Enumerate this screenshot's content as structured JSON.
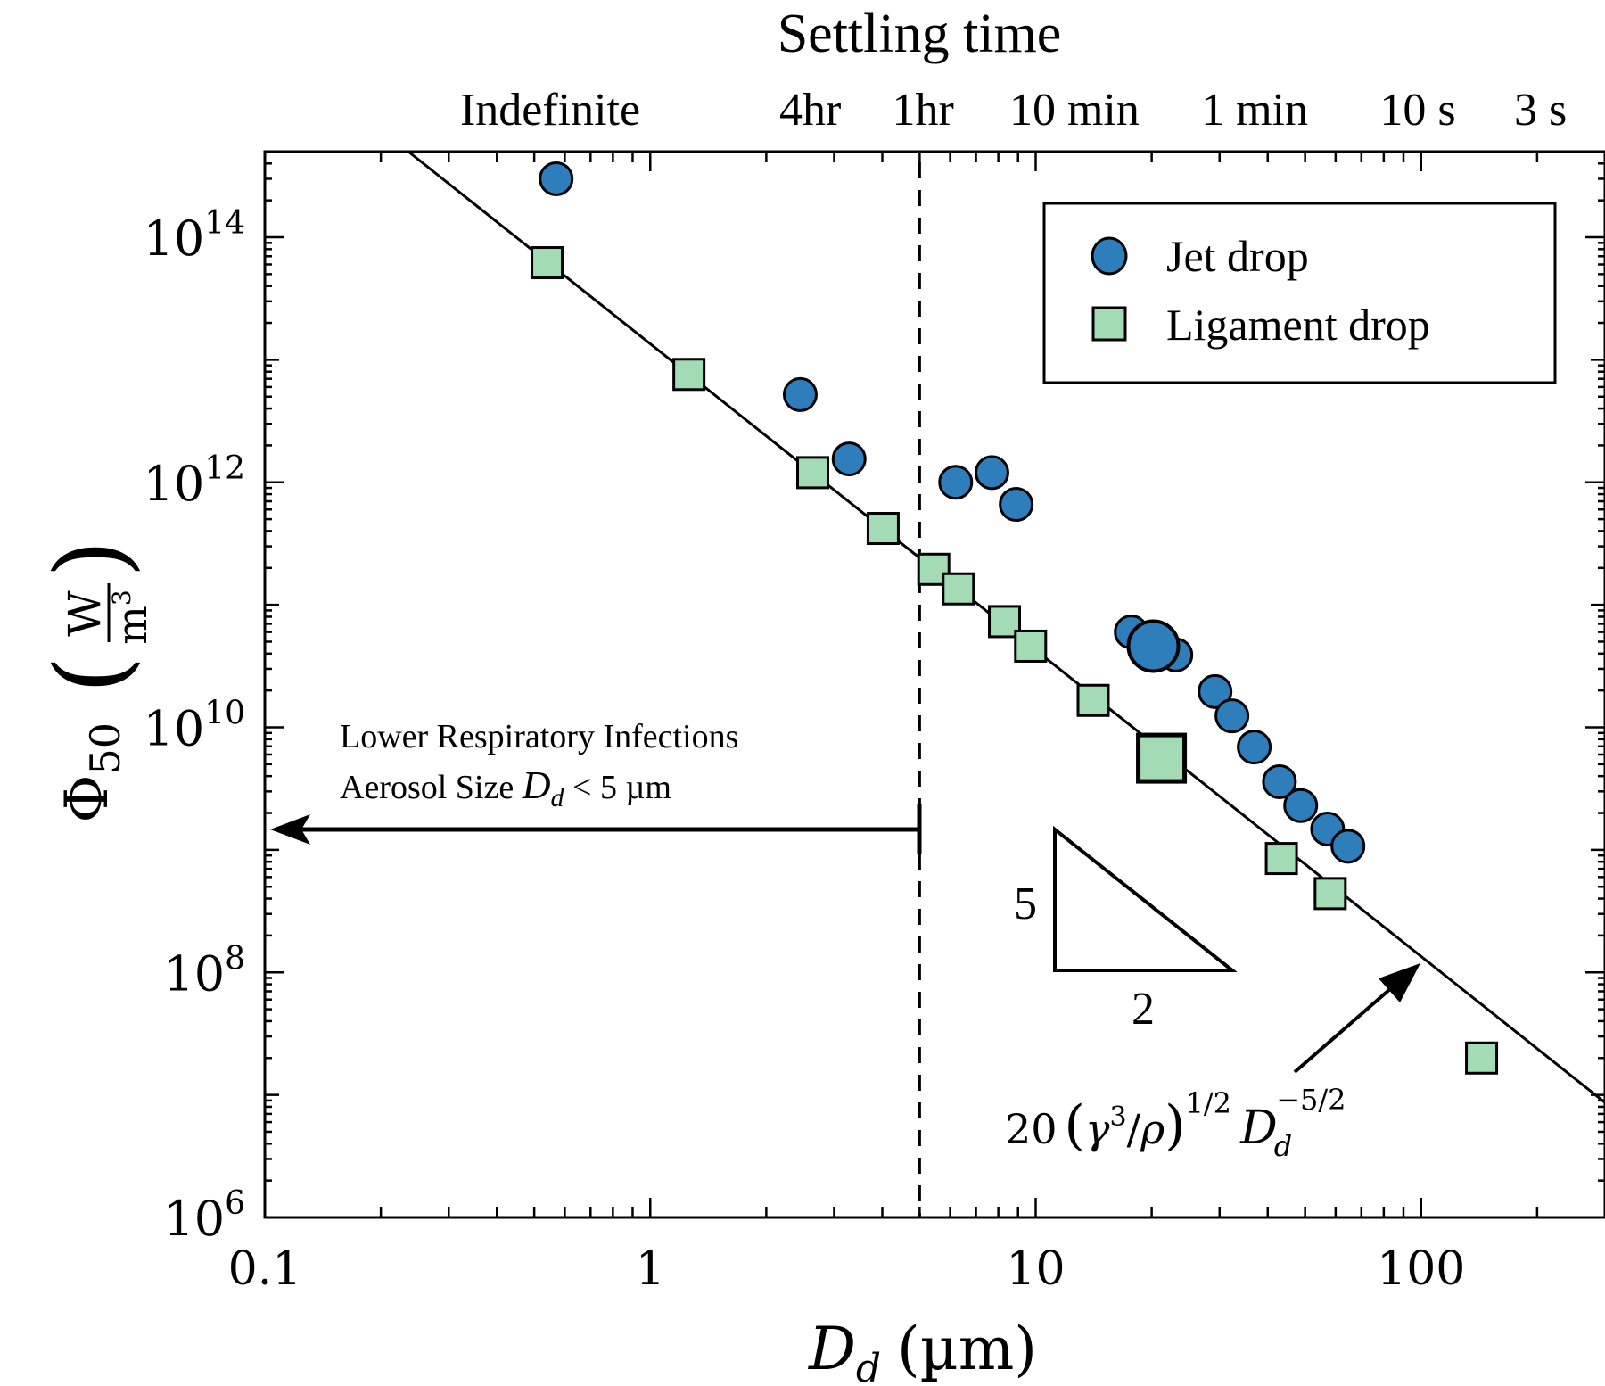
{
  "chart_data": {
    "type": "scatter",
    "xscale": "log",
    "yscale": "log",
    "xlim": [
      0.1,
      300
    ],
    "ylim": [
      1000000.0,
      500000000000000.0
    ],
    "title": "Settling time",
    "xlabel": "D_d (µm)",
    "xlabel_parts": {
      "main": "D",
      "sub": "d",
      "unit": "(µm)"
    },
    "ylabel_parts": {
      "main": "Φ",
      "sub": "50",
      "num": "W",
      "den": "m",
      "den_sup": "3"
    },
    "x_ticks": [
      {
        "value": 0.1,
        "label": "0.1"
      },
      {
        "value": 1,
        "label": "1"
      },
      {
        "value": 10,
        "label": "10"
      },
      {
        "value": 100,
        "label": "100"
      }
    ],
    "y_ticks": [
      {
        "value": 1000000.0,
        "base": "10",
        "exp": "6"
      },
      {
        "value": 100000000.0,
        "base": "10",
        "exp": "8"
      },
      {
        "value": 10000000000.0,
        "base": "10",
        "exp": "10"
      },
      {
        "value": 1000000000000.0,
        "base": "10",
        "exp": "12"
      },
      {
        "value": 100000000000000.0,
        "base": "10",
        "exp": "14"
      }
    ],
    "top_axis_labels": [
      {
        "x": 0.55,
        "label": "Indefinite"
      },
      {
        "x": 2.6,
        "label": "4hr"
      },
      {
        "x": 5.1,
        "label": "1hr"
      },
      {
        "x": 12.6,
        "label": "10 min"
      },
      {
        "x": 37,
        "label": "1 min"
      },
      {
        "x": 98,
        "label": "10 s"
      },
      {
        "x": 204,
        "label": "3 s"
      }
    ],
    "grid": false,
    "legend": {
      "placement": "top-right",
      "entries": [
        {
          "label": "Jet drop",
          "marker": "circle",
          "color": "#2e7ebc"
        },
        {
          "label": "Ligament drop",
          "marker": "square",
          "color": "#a3dbb5"
        }
      ]
    },
    "series": [
      {
        "name": "Jet drop",
        "marker": "circle",
        "color": "#2e7ebc",
        "points": [
          {
            "x": 0.57,
            "y": 300000000000000.0
          },
          {
            "x": 2.45,
            "y": 5200000000000.0
          },
          {
            "x": 3.28,
            "y": 1550000000000.0
          },
          {
            "x": 6.2,
            "y": 1000000000000.0
          },
          {
            "x": 7.7,
            "y": 1200000000000.0
          },
          {
            "x": 8.9,
            "y": 660000000000.0
          },
          {
            "x": 17.7,
            "y": 60000000000.0
          },
          {
            "x": 23.1,
            "y": 39000000000.0
          },
          {
            "x": 20.2,
            "y": 46000000000.0,
            "highlight": true
          },
          {
            "x": 29.2,
            "y": 19600000000.0
          },
          {
            "x": 32.3,
            "y": 12400000000.0
          },
          {
            "x": 36.9,
            "y": 6900000000.0
          },
          {
            "x": 42.9,
            "y": 3600000000.0
          },
          {
            "x": 48.7,
            "y": 2300000000.0
          },
          {
            "x": 57.2,
            "y": 1480000000.0
          },
          {
            "x": 64.6,
            "y": 1070000000.0
          }
        ]
      },
      {
        "name": "Ligament drop",
        "marker": "square",
        "color": "#a3dbb5",
        "points": [
          {
            "x": 0.54,
            "y": 62000000000000.0
          },
          {
            "x": 1.26,
            "y": 7600000000000.0
          },
          {
            "x": 2.64,
            "y": 1200000000000.0
          },
          {
            "x": 4.02,
            "y": 420000000000.0
          },
          {
            "x": 5.44,
            "y": 195000000000.0
          },
          {
            "x": 6.3,
            "y": 135000000000.0
          },
          {
            "x": 8.3,
            "y": 73000000000.0
          },
          {
            "x": 9.7,
            "y": 46000000000.0
          },
          {
            "x": 14.1,
            "y": 16600000000.0
          },
          {
            "x": 21.2,
            "y": 5600000000.0,
            "highlight": true
          },
          {
            "x": 43.4,
            "y": 850000000.0
          },
          {
            "x": 58.1,
            "y": 440000000.0
          },
          {
            "x": 143.5,
            "y": 20000000.0
          }
        ]
      }
    ],
    "fit_line": {
      "prefactor": 13500000000000.0,
      "exponent": -2.5,
      "x_range": [
        0.23,
        300
      ],
      "label_parts": {
        "coef": "20",
        "gamma": "γ",
        "gamma_exp": "3",
        "rho": "ρ",
        "outer_exp": "1/2",
        "D": "D",
        "sub": "d",
        "exp": "−5/2"
      },
      "arrow_to_x": 100
    },
    "threshold_line": {
      "x": 5,
      "style": "dashed",
      "annotation_line1": "Lower Respiratory Infections",
      "annotation_line2_prefix": "Aerosol Size ",
      "annotation_var": "D",
      "annotation_sub": "d",
      "annotation_line2_suffix": " <  5 µm"
    },
    "slope_triangle": {
      "rise_label": "5",
      "run_label": "2"
    }
  }
}
